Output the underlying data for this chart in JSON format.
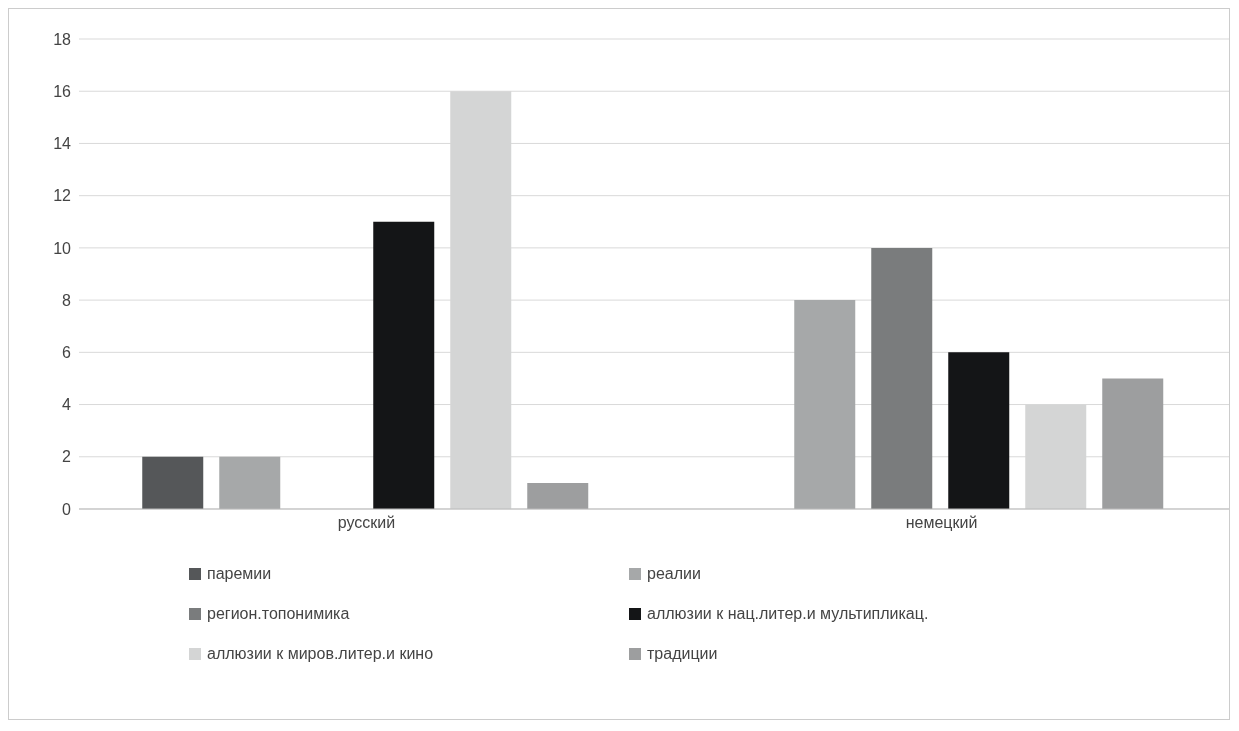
{
  "chart_data": {
    "type": "bar",
    "categories": [
      "русский",
      "немецкий"
    ],
    "series": [
      {
        "name": "паремии",
        "color": "#555759",
        "values": [
          2,
          0
        ]
      },
      {
        "name": "реалии",
        "color": "#a6a8a9",
        "values": [
          2,
          8
        ]
      },
      {
        "name": "регион.топонимика",
        "color": "#7a7c7d",
        "values": [
          0,
          10
        ]
      },
      {
        "name": "аллюзии к нац.литер.и мультипликац.",
        "color": "#141517",
        "values": [
          11,
          6
        ]
      },
      {
        "name": "аллюзии к миров.литер.и кино",
        "color": "#d4d5d5",
        "values": [
          16,
          4
        ]
      },
      {
        "name": "традиции",
        "color": "#9d9e9f",
        "values": [
          1,
          5
        ]
      }
    ],
    "ylim": [
      0,
      18
    ],
    "yticks": [
      0,
      2,
      4,
      6,
      8,
      10,
      12,
      14,
      16,
      18
    ],
    "grid": "y",
    "legend": "bottom"
  }
}
